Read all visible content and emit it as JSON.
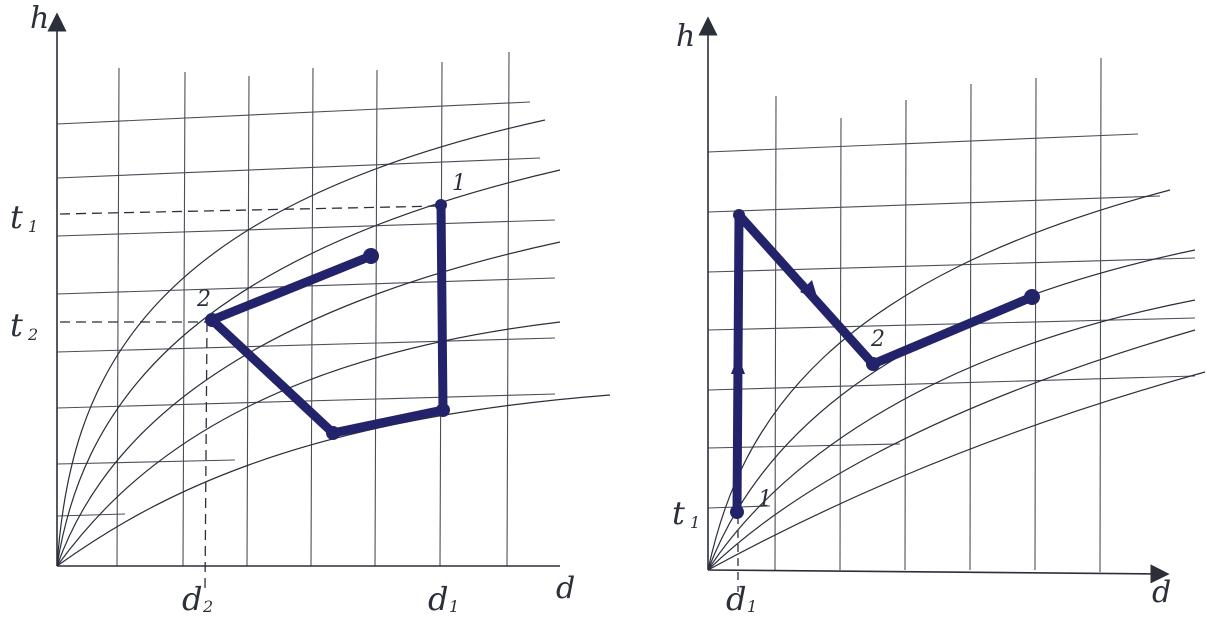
{
  "colors": {
    "ink": "#2a2f3a",
    "grid": "#4a4e58",
    "process": "#23236b"
  },
  "left_diagram": {
    "axis_h": "h",
    "axis_d": "d",
    "t1_base": "t",
    "t1_sub": "1",
    "t2_base": "t",
    "t2_sub": "2",
    "d1_base": "d",
    "d1_sub": "1",
    "d2_base": "d",
    "d2_sub": "2",
    "point_1": "1",
    "point_2": "2"
  },
  "right_diagram": {
    "axis_h": "h",
    "axis_d": "d",
    "t1_base": "t",
    "t1_sub": "1",
    "d1_base": "d",
    "d1_sub": "1",
    "point_1": "1",
    "point_2": "2"
  }
}
